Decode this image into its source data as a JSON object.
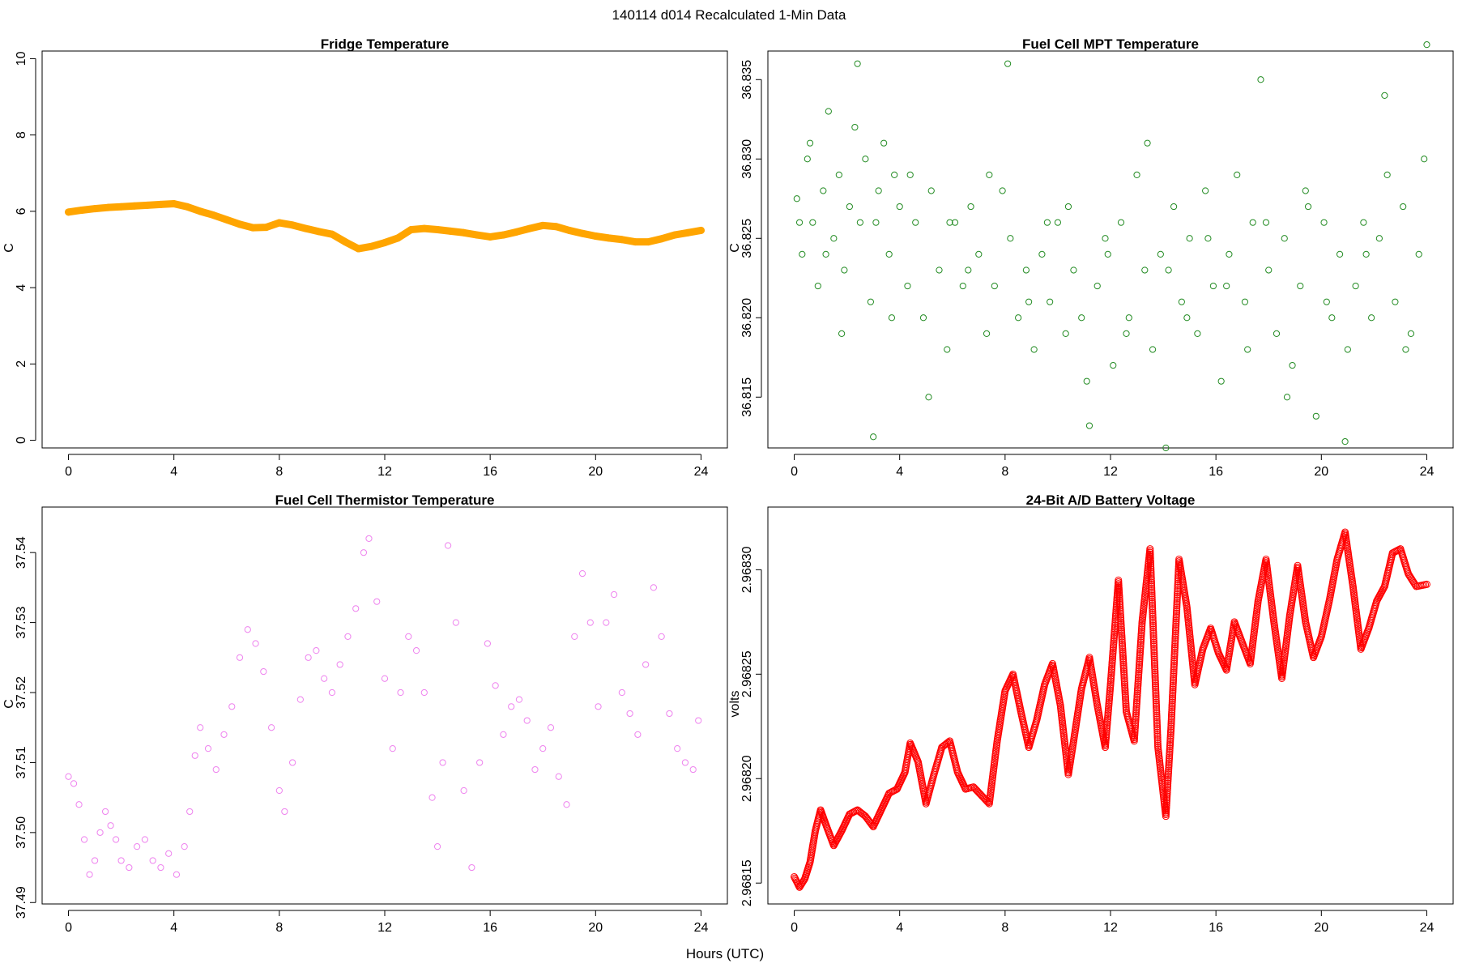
{
  "figure": {
    "title": "140114   d014   Recalculated 1-Min Data",
    "shared_xlabel": "Hours (UTC)"
  },
  "chart_data": [
    {
      "id": "fridge",
      "type": "line",
      "title": "Fridge Temperature",
      "xlabel": "",
      "ylabel": "C",
      "xlim": [
        -1,
        25
      ],
      "ylim": [
        -0.2,
        10.2
      ],
      "xticks": [
        0,
        4,
        8,
        12,
        16,
        20,
        24
      ],
      "yticks": [
        0,
        2,
        4,
        6,
        8,
        10
      ],
      "ytick_labels": [
        "0",
        "2",
        "4",
        "6",
        "8",
        "10"
      ],
      "color": "#FFA500",
      "marker": "circle",
      "x": [
        0,
        0.5,
        1,
        1.5,
        2,
        2.5,
        3,
        3.5,
        4,
        4.5,
        5,
        5.5,
        6,
        6.5,
        7,
        7.5,
        8,
        8.5,
        9,
        9.5,
        10,
        10.5,
        11,
        11.5,
        12,
        12.5,
        13,
        13.5,
        14,
        14.5,
        15,
        15.5,
        16,
        16.5,
        17,
        17.5,
        18,
        18.5,
        19,
        19.5,
        20,
        20.5,
        21,
        21.5,
        22,
        22.5,
        23,
        23.5,
        24
      ],
      "values": [
        5.98,
        6.03,
        6.07,
        6.1,
        6.12,
        6.14,
        6.16,
        6.18,
        6.2,
        6.12,
        6.0,
        5.9,
        5.78,
        5.66,
        5.57,
        5.58,
        5.7,
        5.64,
        5.55,
        5.47,
        5.4,
        5.2,
        5.02,
        5.08,
        5.18,
        5.3,
        5.52,
        5.55,
        5.52,
        5.48,
        5.44,
        5.38,
        5.33,
        5.38,
        5.46,
        5.55,
        5.63,
        5.6,
        5.5,
        5.42,
        5.35,
        5.3,
        5.26,
        5.2,
        5.2,
        5.28,
        5.38,
        5.44,
        5.5
      ]
    },
    {
      "id": "mpt",
      "type": "scatter",
      "title": "Fuel Cell MPT Temperature",
      "xlabel": "",
      "ylabel": "C",
      "xlim": [
        -1,
        25
      ],
      "ylim": [
        36.8118,
        36.8368
      ],
      "xticks": [
        0,
        4,
        8,
        12,
        16,
        20,
        24
      ],
      "yticks": [
        36.815,
        36.82,
        36.825,
        36.83,
        36.835
      ],
      "ytick_labels": [
        "36.815",
        "36.820",
        "36.825",
        "36.830",
        "36.835"
      ],
      "color": "#228B22",
      "marker": "open-circle",
      "x": [
        0.1,
        0.3,
        0.5,
        0.7,
        0.9,
        1.1,
        1.3,
        1.5,
        1.7,
        1.9,
        2.1,
        2.3,
        2.5,
        2.7,
        2.9,
        3.0,
        3.2,
        3.4,
        3.6,
        3.8,
        4.0,
        4.3,
        4.6,
        4.9,
        5.2,
        5.5,
        5.8,
        6.1,
        6.4,
        6.7,
        7.0,
        7.3,
        7.6,
        7.9,
        8.2,
        8.5,
        8.8,
        9.1,
        9.4,
        9.7,
        10.0,
        10.3,
        10.6,
        10.9,
        11.2,
        11.5,
        11.8,
        12.1,
        12.4,
        12.7,
        13.0,
        13.3,
        13.6,
        13.9,
        14.1,
        14.4,
        14.7,
        15.0,
        15.3,
        15.6,
        15.9,
        16.2,
        16.5,
        16.8,
        17.1,
        17.4,
        17.7,
        18.0,
        18.3,
        18.6,
        18.9,
        19.2,
        19.5,
        19.8,
        20.1,
        20.4,
        20.7,
        21.0,
        21.3,
        21.6,
        21.9,
        22.2,
        22.5,
        22.8,
        23.1,
        23.4,
        23.7,
        24.0,
        0.2,
        0.6,
        1.2,
        1.8,
        2.4,
        3.1,
        3.7,
        4.4,
        5.1,
        5.9,
        6.6,
        7.4,
        8.1,
        8.9,
        9.6,
        10.4,
        11.1,
        11.9,
        12.6,
        13.4,
        14.2,
        14.9,
        15.7,
        16.4,
        17.2,
        17.9,
        18.7,
        19.4,
        20.2,
        20.9,
        21.7,
        22.4,
        23.2,
        23.9
      ],
      "values": [
        36.8275,
        36.824,
        36.83,
        36.826,
        36.822,
        36.828,
        36.833,
        36.825,
        36.829,
        36.823,
        36.827,
        36.832,
        36.826,
        36.83,
        36.821,
        36.8125,
        36.828,
        36.831,
        36.824,
        36.829,
        36.827,
        36.822,
        36.826,
        36.82,
        36.828,
        36.823,
        36.818,
        36.826,
        36.822,
        36.827,
        36.824,
        36.819,
        36.822,
        36.828,
        36.825,
        36.82,
        36.823,
        36.818,
        36.824,
        36.821,
        36.826,
        36.819,
        36.823,
        36.82,
        36.8132,
        36.822,
        36.825,
        36.817,
        36.826,
        36.82,
        36.829,
        36.823,
        36.818,
        36.824,
        36.8118,
        36.827,
        36.821,
        36.825,
        36.819,
        36.828,
        36.822,
        36.816,
        36.824,
        36.829,
        36.821,
        36.826,
        36.835,
        36.823,
        36.819,
        36.825,
        36.817,
        36.822,
        36.827,
        36.8138,
        36.826,
        36.82,
        36.824,
        36.818,
        36.822,
        36.826,
        36.82,
        36.825,
        36.829,
        36.821,
        36.827,
        36.819,
        36.824,
        36.8372,
        36.826,
        36.831,
        36.824,
        36.819,
        36.836,
        36.826,
        36.82,
        36.829,
        36.815,
        36.826,
        36.823,
        36.829,
        36.836,
        36.821,
        36.826,
        36.827,
        36.816,
        36.824,
        36.819,
        36.831,
        36.823,
        36.82,
        36.825,
        36.822,
        36.818,
        36.826,
        36.815,
        36.828,
        36.821,
        36.8122,
        36.824,
        36.834,
        36.818,
        36.83
      ]
    },
    {
      "id": "thermistor",
      "type": "scatter",
      "title": "Fuel Cell Thermistor Temperature",
      "xlabel": "",
      "ylabel": "C",
      "xlim": [
        -1,
        25
      ],
      "ylim": [
        37.4898,
        37.5465
      ],
      "xticks": [
        0,
        4,
        8,
        12,
        16,
        20,
        24
      ],
      "yticks": [
        37.49,
        37.5,
        37.51,
        37.52,
        37.53,
        37.54
      ],
      "ytick_labels": [
        "37.49",
        "37.50",
        "37.51",
        "37.52",
        "37.53",
        "37.54"
      ],
      "color": "#EE82EE",
      "marker": "open-circle",
      "x": [
        0,
        0.2,
        0.4,
        0.6,
        0.8,
        1.0,
        1.2,
        1.4,
        1.6,
        1.8,
        2.0,
        2.3,
        2.6,
        2.9,
        3.2,
        3.5,
        3.8,
        4.1,
        4.4,
        4.6,
        4.8,
        5.0,
        5.3,
        5.6,
        5.9,
        6.2,
        6.5,
        6.8,
        7.1,
        7.4,
        7.7,
        8.0,
        8.2,
        8.5,
        8.8,
        9.1,
        9.4,
        9.7,
        10.0,
        10.3,
        10.6,
        10.9,
        11.2,
        11.4,
        11.7,
        12.0,
        12.3,
        12.6,
        12.9,
        13.2,
        13.5,
        13.8,
        14.0,
        14.2,
        14.4,
        14.7,
        15.0,
        15.3,
        15.6,
        15.9,
        16.2,
        16.5,
        16.8,
        17.1,
        17.4,
        17.7,
        18.0,
        18.3,
        18.6,
        18.9,
        19.2,
        19.5,
        19.8,
        20.1,
        20.4,
        20.7,
        21.0,
        21.3,
        21.6,
        21.9,
        22.2,
        22.5,
        22.8,
        23.1,
        23.4,
        23.7,
        23.9
      ],
      "values": [
        37.508,
        37.507,
        37.504,
        37.499,
        37.494,
        37.496,
        37.5,
        37.503,
        37.501,
        37.499,
        37.496,
        37.495,
        37.498,
        37.499,
        37.496,
        37.495,
        37.497,
        37.494,
        37.498,
        37.503,
        37.511,
        37.515,
        37.512,
        37.509,
        37.514,
        37.518,
        37.525,
        37.529,
        37.527,
        37.523,
        37.515,
        37.506,
        37.503,
        37.51,
        37.519,
        37.525,
        37.526,
        37.522,
        37.52,
        37.524,
        37.528,
        37.532,
        37.54,
        37.542,
        37.533,
        37.522,
        37.512,
        37.52,
        37.528,
        37.526,
        37.52,
        37.505,
        37.498,
        37.51,
        37.541,
        37.53,
        37.506,
        37.495,
        37.51,
        37.527,
        37.521,
        37.514,
        37.518,
        37.519,
        37.516,
        37.509,
        37.512,
        37.515,
        37.508,
        37.504,
        37.528,
        37.537,
        37.53,
        37.518,
        37.53,
        37.534,
        37.52,
        37.517,
        37.514,
        37.524,
        37.535,
        37.528,
        37.517,
        37.512,
        37.51,
        37.509,
        37.516
      ]
    },
    {
      "id": "battery",
      "type": "line",
      "title": "24-Bit A/D Battery Voltage",
      "xlabel": "",
      "ylabel": "volts",
      "xlim": [
        -1,
        25
      ],
      "ylim": [
        2.96814,
        2.96833
      ],
      "xticks": [
        0,
        4,
        8,
        12,
        16,
        20,
        24
      ],
      "yticks": [
        2.96815,
        2.9682,
        2.96825,
        2.9683
      ],
      "ytick_labels": [
        "2.96815",
        "2.96820",
        "2.96825",
        "2.96830"
      ],
      "color": "#FF0000",
      "marker": "open-circle",
      "x": [
        0,
        0.2,
        0.4,
        0.6,
        0.8,
        1.0,
        1.2,
        1.5,
        1.8,
        2.1,
        2.4,
        2.7,
        3.0,
        3.3,
        3.6,
        3.9,
        4.2,
        4.4,
        4.7,
        5.0,
        5.3,
        5.6,
        5.9,
        6.2,
        6.5,
        6.8,
        7.1,
        7.4,
        7.7,
        8.0,
        8.3,
        8.6,
        8.9,
        9.2,
        9.5,
        9.8,
        10.1,
        10.4,
        10.6,
        10.9,
        11.2,
        11.5,
        11.8,
        12.0,
        12.3,
        12.6,
        12.9,
        13.2,
        13.5,
        13.8,
        14.1,
        14.3,
        14.6,
        14.9,
        15.2,
        15.5,
        15.8,
        16.1,
        16.4,
        16.7,
        17.0,
        17.3,
        17.6,
        17.9,
        18.2,
        18.5,
        18.8,
        19.1,
        19.4,
        19.7,
        20.0,
        20.3,
        20.6,
        20.9,
        21.2,
        21.5,
        21.8,
        22.1,
        22.4,
        22.7,
        23.0,
        23.3,
        23.6,
        24.0
      ],
      "values": [
        2.968153,
        2.968148,
        2.968152,
        2.96816,
        2.968175,
        2.968185,
        2.968178,
        2.968168,
        2.968175,
        2.968183,
        2.968185,
        2.968182,
        2.968177,
        2.968185,
        2.968193,
        2.968195,
        2.968203,
        2.968217,
        2.968208,
        2.968188,
        2.968202,
        2.968215,
        2.968218,
        2.968203,
        2.968195,
        2.968196,
        2.968192,
        2.968188,
        2.968218,
        2.968242,
        2.96825,
        2.968232,
        2.968215,
        2.968228,
        2.968245,
        2.968255,
        2.968235,
        2.968202,
        2.968218,
        2.968243,
        2.968258,
        2.968235,
        2.968215,
        2.968245,
        2.968295,
        2.968232,
        2.968218,
        2.968275,
        2.96831,
        2.968215,
        2.968182,
        2.968225,
        2.968305,
        2.968282,
        2.968245,
        2.968262,
        2.968272,
        2.96826,
        2.968252,
        2.968275,
        2.968265,
        2.968255,
        2.968285,
        2.968305,
        2.968275,
        2.968248,
        2.968278,
        2.968302,
        2.968275,
        2.968258,
        2.968268,
        2.968285,
        2.968305,
        2.968318,
        2.968292,
        2.968262,
        2.968272,
        2.968285,
        2.968292,
        2.968308,
        2.96831,
        2.968298,
        2.968292,
        2.968293
      ]
    }
  ]
}
